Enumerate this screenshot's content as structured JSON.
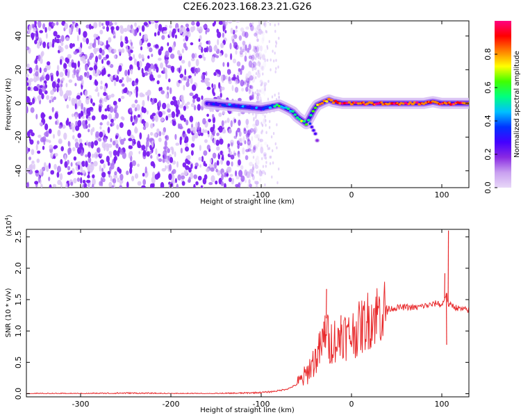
{
  "figure_title": "C2E6.2023.168.23.21.G26",
  "chart_data": [
    {
      "type": "heatmap",
      "title": "C2E6.2023.168.23.21.G26",
      "xlabel": "Height of straight line (km)",
      "ylabel": "Frequency (Hz)",
      "xlim": [
        -360,
        130
      ],
      "ylim": [
        -50,
        49
      ],
      "x_ticks": [
        -300,
        -200,
        -100,
        0,
        100
      ],
      "y_ticks": [
        -40,
        -20,
        0,
        20,
        40
      ],
      "colorbar": {
        "label": "Normalized spectral amplitude",
        "range": [
          0.0,
          1.0
        ],
        "ticks": [
          0.0,
          0.2,
          0.4,
          0.6,
          0.8
        ],
        "tick_labels": [
          "0.0",
          "0.2",
          "0.4",
          "0.6",
          "0.8"
        ],
        "colors": [
          "#e8d8f8",
          "#c9a0f0",
          "#8a2be2",
          "#4400ff",
          "#0033ff",
          "#00c0ff",
          "#00ff80",
          "#40ff00",
          "#ffff00",
          "#ff8000",
          "#ff0000",
          "#ff0080"
        ]
      },
      "noise_region": {
        "x_range": [
          -360,
          -95
        ],
        "amplitude": 0.15
      },
      "signal_trace": {
        "x": [
          -160,
          -140,
          -120,
          -100,
          -90,
          -80,
          -72,
          -65,
          -60,
          -55,
          -50,
          -46,
          -42,
          -38,
          -34,
          -30,
          -25,
          -20,
          -10,
          0,
          20,
          40,
          60,
          80,
          90,
          100,
          110,
          130
        ],
        "frequency": [
          0,
          -1,
          -2,
          -3,
          -2,
          -1,
          -3,
          -5,
          -8,
          -10,
          -12,
          -8,
          -4,
          -1,
          0,
          1,
          2,
          1,
          0,
          0,
          0,
          0,
          0,
          0,
          1,
          0,
          0,
          0
        ],
        "amplitude": [
          0.25,
          0.3,
          0.35,
          0.4,
          0.45,
          0.5,
          0.55,
          0.5,
          0.55,
          0.6,
          0.55,
          0.6,
          0.65,
          0.7,
          0.75,
          0.8,
          0.85,
          0.85,
          0.9,
          0.9,
          0.9,
          0.9,
          0.9,
          0.9,
          0.9,
          0.9,
          0.9,
          0.9
        ]
      },
      "secondary_trace": {
        "x": [
          -46,
          -44,
          -42,
          -40,
          -38
        ],
        "frequency": [
          -12,
          -14,
          -16,
          -18,
          -22
        ],
        "amplitude": [
          0.35,
          0.3,
          0.3,
          0.25,
          0.2
        ]
      }
    },
    {
      "type": "line",
      "xlabel": "Height of straight line (km)",
      "ylabel": "SNR (10 * v/v)",
      "y_multiplier": "(x10",
      "y_multiplier_exponent": "4",
      "y_multiplier_close": ")",
      "xlim": [
        -360,
        130
      ],
      "ylim": [
        -0.05,
        2.62
      ],
      "x_ticks": [
        -300,
        -200,
        -100,
        0,
        100
      ],
      "y_ticks": [
        0.0,
        0.5,
        1.0,
        1.5,
        2.0,
        2.5
      ],
      "y_tick_labels": [
        "0.0",
        "0.5",
        "1.0",
        "1.5",
        "2.0",
        "2.5"
      ],
      "series": [
        {
          "color": "#e8292b",
          "x": [
            -360,
            -300,
            -250,
            -200,
            -150,
            -120,
            -100,
            -90,
            -80,
            -70,
            -60,
            -50,
            -45,
            -40,
            -35,
            -30,
            -28,
            -25,
            -20,
            -15,
            -10,
            -5,
            0,
            10,
            20,
            30,
            40,
            50,
            60,
            70,
            80,
            90,
            95,
            100,
            105,
            108,
            110,
            115,
            120,
            130
          ],
          "y": [
            0.0,
            0.0,
            0.01,
            0.0,
            0.0,
            0.01,
            0.02,
            0.03,
            0.05,
            0.08,
            0.15,
            0.3,
            0.45,
            0.55,
            0.7,
            0.85,
            1.2,
            0.75,
            0.9,
            0.8,
            1.0,
            0.9,
            0.95,
            1.05,
            1.2,
            1.3,
            1.35,
            1.37,
            1.38,
            1.37,
            1.4,
            1.42,
            1.45,
            1.4,
            1.6,
            1.38,
            1.42,
            1.38,
            1.35,
            1.33
          ]
        }
      ],
      "spikes": [
        {
          "x": -28,
          "y": 1.67
        },
        {
          "x": -31,
          "y": 1.15
        },
        {
          "x": -12,
          "y": 1.25
        },
        {
          "x": 107,
          "y": 2.6
        },
        {
          "x": 105,
          "y": 0.78
        },
        {
          "x": 103,
          "y": 1.92
        }
      ]
    }
  ]
}
